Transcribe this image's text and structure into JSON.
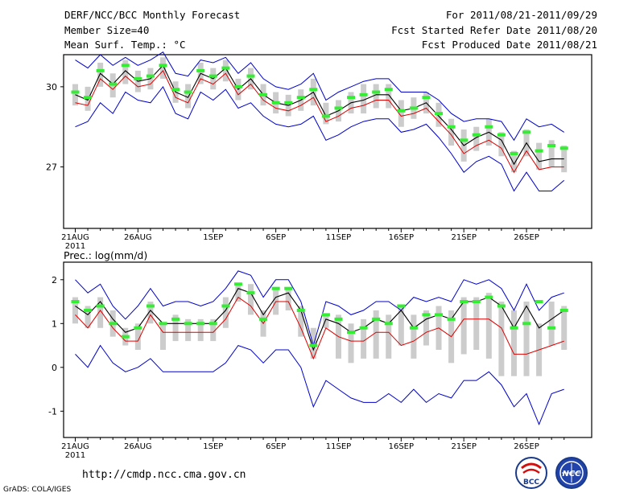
{
  "header": {
    "title": "DERF/NCC/BCC Monthly Forecast",
    "member_size": "Member Size=40",
    "variable": "Mean Surf. Temp.: °C",
    "period": "For 2011/08/21-2011/09/29",
    "start_date": "Fcst Started Refer Date 2011/08/20",
    "produced_date": "Fcst Produced Date 2011/08/21"
  },
  "footer": {
    "url": "http://cmdp.ncc.cma.gov.cn",
    "grads_credit": "GrADS: COLA/IGES",
    "logo_left_text": "BCC",
    "logo_right_text": "NCC"
  },
  "colors": {
    "envelope": "#0000cc",
    "mean": "#000000",
    "median": "#dd0000",
    "marker": "#33ee33",
    "box": "#cccccc"
  },
  "chart_data": [
    {
      "type": "line",
      "title": "Mean Surf. Temp.: °C",
      "x_ticks": [
        "21AUG",
        "26AUG",
        "1SEP",
        "6SEP",
        "11SEP",
        "16SEP",
        "21SEP",
        "26SEP"
      ],
      "x_tick_days": [
        1,
        6,
        12,
        17,
        22,
        27,
        32,
        37
      ],
      "year_label": "2011",
      "ylim": [
        24.7,
        31.2
      ],
      "y_ticks": [
        27,
        30
      ],
      "days": [
        1,
        2,
        3,
        4,
        5,
        6,
        7,
        8,
        9,
        10,
        11,
        12,
        13,
        14,
        15,
        16,
        17,
        18,
        19,
        20,
        21,
        22,
        23,
        24,
        25,
        26,
        27,
        28,
        29,
        30,
        31,
        32,
        33,
        34,
        35,
        36,
        37,
        38,
        39,
        40
      ],
      "series": [
        {
          "name": "max",
          "values": [
            31.0,
            30.7,
            31.2,
            30.8,
            31.1,
            30.8,
            31.0,
            31.3,
            30.5,
            30.4,
            31.0,
            30.9,
            31.1,
            30.5,
            30.9,
            30.3,
            30.0,
            29.9,
            30.1,
            30.5,
            29.5,
            29.8,
            30.0,
            30.2,
            30.3,
            30.3,
            29.8,
            29.8,
            29.8,
            29.5,
            29.0,
            28.7,
            28.8,
            28.8,
            28.7,
            28.0,
            28.8,
            28.5,
            28.6,
            28.3
          ]
        },
        {
          "name": "mean",
          "values": [
            29.7,
            29.5,
            30.5,
            30.1,
            30.6,
            30.2,
            30.3,
            30.8,
            29.8,
            29.6,
            30.5,
            30.3,
            30.7,
            29.9,
            30.3,
            29.7,
            29.4,
            29.3,
            29.5,
            29.8,
            28.9,
            29.1,
            29.4,
            29.5,
            29.7,
            29.7,
            29.1,
            29.2,
            29.4,
            28.9,
            28.4,
            27.8,
            28.1,
            28.3,
            28.0,
            27.1,
            27.9,
            27.2,
            27.3,
            27.3
          ]
        },
        {
          "name": "median",
          "values": [
            29.4,
            29.3,
            30.3,
            29.9,
            30.4,
            30.0,
            30.1,
            30.6,
            29.6,
            29.4,
            30.3,
            30.1,
            30.5,
            29.7,
            30.1,
            29.5,
            29.2,
            29.1,
            29.3,
            29.6,
            28.7,
            28.9,
            29.2,
            29.3,
            29.5,
            29.5,
            28.9,
            29.0,
            29.2,
            28.7,
            28.2,
            27.5,
            27.8,
            28.0,
            27.7,
            26.8,
            27.6,
            26.9,
            27.0,
            27.0
          ]
        },
        {
          "name": "min",
          "values": [
            28.5,
            28.7,
            29.4,
            29.0,
            29.8,
            29.5,
            29.4,
            30.0,
            29.0,
            28.8,
            29.8,
            29.5,
            29.9,
            29.2,
            29.4,
            28.9,
            28.6,
            28.5,
            28.6,
            28.9,
            28.0,
            28.2,
            28.5,
            28.7,
            28.8,
            28.8,
            28.3,
            28.4,
            28.6,
            28.1,
            27.5,
            26.8,
            27.2,
            27.4,
            27.1,
            26.1,
            26.8,
            26.1,
            26.1,
            26.5
          ]
        },
        {
          "name": "marker",
          "values": [
            29.8,
            29.6,
            30.6,
            30.1,
            30.8,
            30.3,
            30.4,
            30.8,
            29.9,
            29.8,
            30.6,
            30.4,
            30.7,
            30.0,
            30.4,
            29.7,
            29.4,
            29.4,
            29.6,
            29.9,
            28.9,
            29.2,
            29.6,
            29.7,
            29.8,
            29.9,
            29.1,
            29.2,
            29.6,
            29.0,
            28.5,
            28.0,
            28.2,
            28.5,
            28.2,
            27.5,
            28.3,
            27.6,
            27.8,
            27.7
          ]
        }
      ],
      "boxes": [
        [
          29.3,
          30.1
        ],
        [
          29.1,
          30.0
        ],
        [
          30.0,
          30.9
        ],
        [
          29.6,
          30.5
        ],
        [
          30.1,
          31.0
        ],
        [
          29.8,
          30.6
        ],
        [
          29.9,
          30.7
        ],
        [
          30.3,
          31.1
        ],
        [
          29.4,
          30.2
        ],
        [
          29.2,
          30.1
        ],
        [
          30.1,
          30.9
        ],
        [
          29.9,
          30.7
        ],
        [
          30.2,
          31.0
        ],
        [
          29.5,
          30.3
        ],
        [
          29.9,
          30.7
        ],
        [
          29.3,
          30.1
        ],
        [
          29.0,
          29.8
        ],
        [
          28.9,
          29.7
        ],
        [
          29.1,
          29.9
        ],
        [
          29.3,
          30.3
        ],
        [
          28.6,
          29.4
        ],
        [
          28.7,
          29.5
        ],
        [
          29.0,
          29.8
        ],
        [
          29.0,
          30.1
        ],
        [
          29.2,
          30.1
        ],
        [
          29.2,
          30.1
        ],
        [
          28.5,
          29.5
        ],
        [
          28.8,
          29.6
        ],
        [
          29.0,
          29.8
        ],
        [
          28.5,
          29.4
        ],
        [
          27.8,
          28.8
        ],
        [
          27.2,
          28.4
        ],
        [
          27.6,
          28.5
        ],
        [
          27.8,
          28.8
        ],
        [
          27.4,
          28.3
        ],
        [
          26.8,
          27.6
        ],
        [
          27.4,
          28.4
        ],
        [
          26.9,
          27.9
        ],
        [
          27.0,
          28.0
        ],
        [
          26.8,
          27.8
        ]
      ]
    },
    {
      "type": "line",
      "title": "Prec.: log(mm/d)",
      "x_ticks": [
        "21AUG",
        "26AUG",
        "1SEP",
        "6SEP",
        "11SEP",
        "16SEP",
        "21SEP",
        "26SEP"
      ],
      "x_tick_days": [
        1,
        6,
        12,
        17,
        22,
        27,
        32,
        37
      ],
      "year_label": "2011",
      "ylim": [
        -1.6,
        2.4
      ],
      "y_ticks": [
        -1,
        0,
        1,
        2
      ],
      "days": [
        1,
        2,
        3,
        4,
        5,
        6,
        7,
        8,
        9,
        10,
        11,
        12,
        13,
        14,
        15,
        16,
        17,
        18,
        19,
        20,
        21,
        22,
        23,
        24,
        25,
        26,
        27,
        28,
        29,
        30,
        31,
        32,
        33,
        34,
        35,
        36,
        37,
        38,
        39,
        40
      ],
      "series": [
        {
          "name": "max",
          "values": [
            2.0,
            1.7,
            1.9,
            1.4,
            1.1,
            1.4,
            1.8,
            1.4,
            1.5,
            1.5,
            1.4,
            1.5,
            1.8,
            2.2,
            2.1,
            1.6,
            2.0,
            2.0,
            1.5,
            0.5,
            1.5,
            1.4,
            1.2,
            1.3,
            1.5,
            1.5,
            1.3,
            1.6,
            1.5,
            1.6,
            1.5,
            2.0,
            1.9,
            2.0,
            1.8,
            1.3,
            1.9,
            1.3,
            1.6,
            1.7
          ]
        },
        {
          "name": "mean",
          "values": [
            1.4,
            1.2,
            1.5,
            1.1,
            0.8,
            0.9,
            1.3,
            1.0,
            1.0,
            1.0,
            1.0,
            1.0,
            1.3,
            1.8,
            1.7,
            1.2,
            1.6,
            1.7,
            1.3,
            0.4,
            1.1,
            1.0,
            0.8,
            0.9,
            1.1,
            1.0,
            1.3,
            0.9,
            1.1,
            1.2,
            1.1,
            1.5,
            1.5,
            1.6,
            1.4,
            0.9,
            1.4,
            0.9,
            1.1,
            1.3
          ]
        },
        {
          "name": "median",
          "values": [
            1.2,
            0.9,
            1.3,
            0.9,
            0.6,
            0.6,
            1.2,
            0.8,
            0.8,
            0.8,
            0.8,
            0.8,
            1.1,
            1.6,
            1.4,
            1.0,
            1.5,
            1.5,
            0.9,
            0.2,
            0.9,
            0.7,
            0.6,
            0.6,
            0.8,
            0.8,
            0.5,
            0.6,
            0.8,
            0.9,
            0.7,
            1.1,
            1.1,
            1.1,
            0.9,
            0.3,
            0.3,
            0.4,
            0.5,
            0.6
          ]
        },
        {
          "name": "min",
          "values": [
            0.3,
            0.0,
            0.5,
            0.1,
            -0.1,
            0.0,
            0.2,
            -0.1,
            -0.1,
            -0.1,
            -0.1,
            -0.1,
            0.1,
            0.5,
            0.4,
            0.1,
            0.4,
            0.4,
            0.0,
            -0.9,
            -0.3,
            -0.5,
            -0.7,
            -0.8,
            -0.8,
            -0.6,
            -0.8,
            -0.5,
            -0.8,
            -0.6,
            -0.7,
            -0.3,
            -0.3,
            -0.1,
            -0.4,
            -0.9,
            -0.6,
            -1.3,
            -0.6,
            -0.5
          ]
        },
        {
          "name": "marker",
          "values": [
            1.5,
            1.3,
            1.4,
            1.0,
            0.7,
            0.9,
            1.4,
            1.0,
            1.1,
            1.0,
            1.0,
            1.0,
            1.4,
            1.9,
            1.7,
            1.1,
            1.8,
            1.8,
            1.3,
            0.5,
            1.2,
            1.1,
            0.8,
            0.9,
            1.1,
            1.0,
            1.4,
            0.9,
            1.2,
            1.2,
            1.1,
            1.5,
            1.5,
            1.6,
            1.4,
            0.9,
            1.0,
            1.5,
            0.9,
            1.3
          ]
        }
      ],
      "boxes": [
        [
          1.0,
          1.6
        ],
        [
          0.9,
          1.4
        ],
        [
          0.9,
          1.6
        ],
        [
          0.7,
          1.3
        ],
        [
          0.5,
          0.9
        ],
        [
          0.4,
          1.0
        ],
        [
          1.0,
          1.5
        ],
        [
          0.4,
          1.0
        ],
        [
          0.6,
          1.2
        ],
        [
          0.6,
          1.1
        ],
        [
          0.6,
          1.1
        ],
        [
          0.6,
          1.1
        ],
        [
          0.9,
          1.6
        ],
        [
          1.5,
          1.9
        ],
        [
          1.2,
          1.9
        ],
        [
          0.7,
          1.3
        ],
        [
          1.2,
          1.8
        ],
        [
          1.3,
          1.8
        ],
        [
          0.7,
          1.4
        ],
        [
          0.2,
          0.9
        ],
        [
          0.9,
          1.2
        ],
        [
          0.2,
          1.2
        ],
        [
          0.1,
          1.0
        ],
        [
          0.2,
          1.1
        ],
        [
          0.2,
          1.3
        ],
        [
          0.2,
          1.2
        ],
        [
          0.5,
          1.4
        ],
        [
          0.2,
          1.2
        ],
        [
          0.5,
          1.3
        ],
        [
          0.4,
          1.4
        ],
        [
          0.1,
          1.3
        ],
        [
          0.3,
          1.6
        ],
        [
          0.4,
          1.6
        ],
        [
          0.2,
          1.7
        ],
        [
          -0.2,
          1.5
        ],
        [
          -0.2,
          1.3
        ],
        [
          -0.2,
          1.5
        ],
        [
          -0.2,
          1.0
        ],
        [
          0.5,
          1.5
        ],
        [
          0.4,
          1.4
        ]
      ]
    }
  ]
}
